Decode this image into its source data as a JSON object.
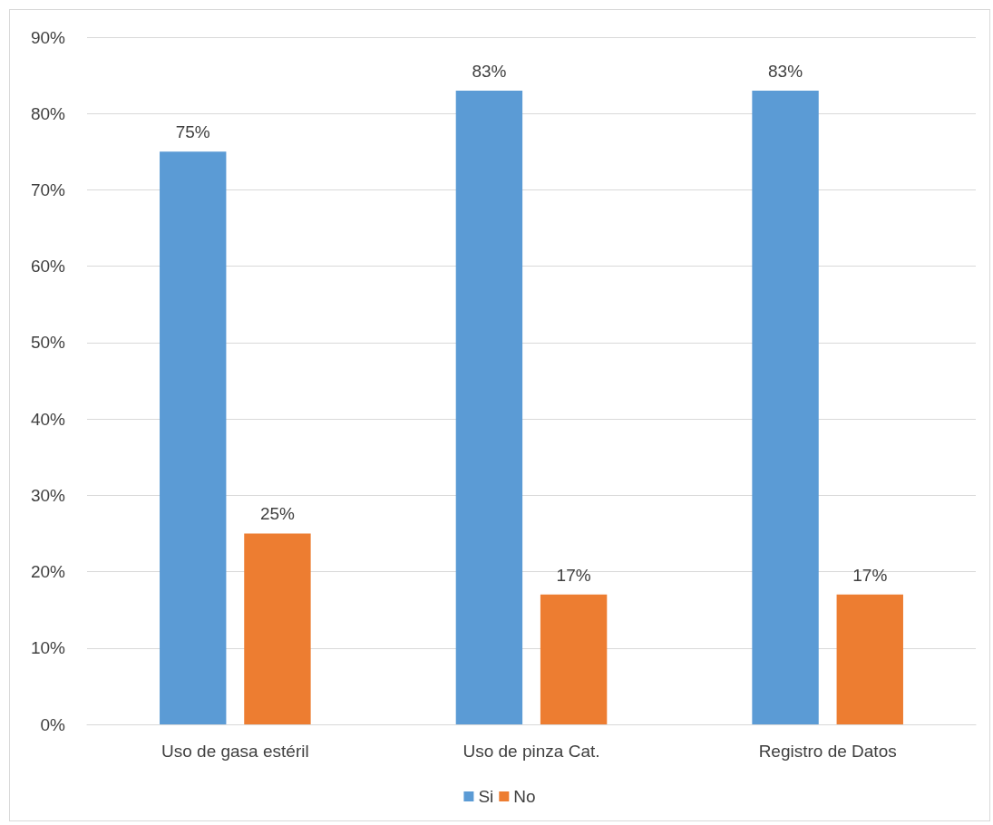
{
  "chart_data": {
    "type": "bar",
    "categories": [
      "Uso de gasa estéril",
      "Uso de pinza Cat.",
      "Registro de Datos"
    ],
    "series": [
      {
        "name": "Si",
        "color": "#5b9bd5",
        "values": [
          75,
          83,
          83
        ],
        "value_labels": [
          "75%",
          "83%",
          "83%"
        ]
      },
      {
        "name": "No",
        "color": "#ed7d31",
        "values": [
          25,
          17,
          17
        ],
        "value_labels": [
          "25%",
          "17%",
          "17%"
        ]
      }
    ],
    "ylim": [
      0,
      90
    ],
    "yticks": [
      {
        "value": 0,
        "label": "0%"
      },
      {
        "value": 10,
        "label": "10%"
      },
      {
        "value": 20,
        "label": "20%"
      },
      {
        "value": 30,
        "label": "30%"
      },
      {
        "value": 40,
        "label": "40%"
      },
      {
        "value": 50,
        "label": "50%"
      },
      {
        "value": 60,
        "label": "60%"
      },
      {
        "value": 70,
        "label": "70%"
      },
      {
        "value": 80,
        "label": "80%"
      },
      {
        "value": 90,
        "label": "90%"
      }
    ],
    "grid": "y",
    "legend": "bottom"
  }
}
